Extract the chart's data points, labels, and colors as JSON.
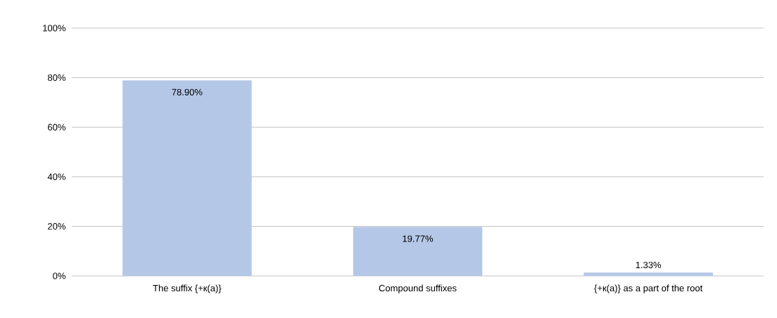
{
  "chart_data": {
    "type": "bar",
    "categories": [
      "The suffix {+к(a)}",
      "Compound suffixes",
      "{+к(a)} as a part of the root"
    ],
    "values": [
      78.9,
      19.77,
      1.33
    ],
    "value_labels": [
      "78.90%",
      "19.77%",
      "1.33%"
    ],
    "color": "#b4c7e7",
    "ylim": [
      0,
      100
    ],
    "yticks": [
      {
        "value": 0,
        "label": "0%"
      },
      {
        "value": 20,
        "label": "20%"
      },
      {
        "value": 40,
        "label": "40%"
      },
      {
        "value": 60,
        "label": "60%"
      },
      {
        "value": 80,
        "label": "80%"
      },
      {
        "value": 100,
        "label": "100%"
      }
    ],
    "grid": "y"
  }
}
